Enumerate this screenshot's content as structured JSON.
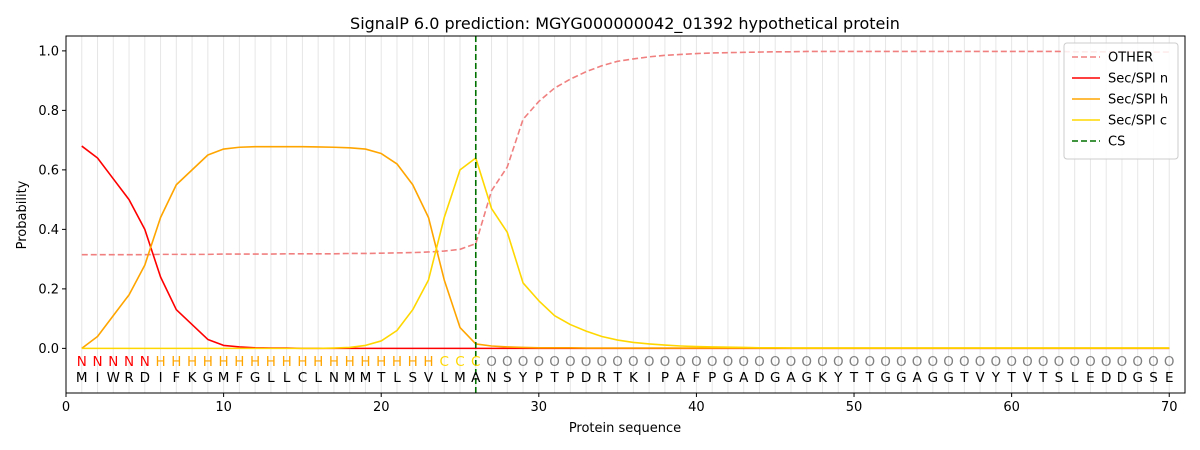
{
  "chart_data": {
    "type": "line",
    "title": "SignalP 6.0 prediction: MGYG000000042_01392 hypothetical protein",
    "xlabel": "Protein sequence",
    "ylabel": "Probability",
    "xlim": [
      0,
      71
    ],
    "ylim": [
      -0.15,
      1.05
    ],
    "xticks": [
      0,
      10,
      20,
      30,
      40,
      50,
      60,
      70
    ],
    "yticks": [
      0.0,
      0.2,
      0.4,
      0.6,
      0.8,
      1.0
    ],
    "ytick_labels": [
      "0.0",
      "0.2",
      "0.4",
      "0.6",
      "0.8",
      "1.0"
    ],
    "grid": "vertical lines at each residue",
    "legend_position": "top-right",
    "cleavage_site": 26,
    "sequence": [
      "M",
      "I",
      "W",
      "R",
      "D",
      "I",
      "F",
      "K",
      "G",
      "M",
      "F",
      "G",
      "L",
      "L",
      "C",
      "L",
      "N",
      "M",
      "M",
      "T",
      "L",
      "S",
      "V",
      "L",
      "M",
      "A",
      "N",
      "S",
      "Y",
      "P",
      "T",
      "P",
      "D",
      "R",
      "T",
      "K",
      "I",
      "P",
      "A",
      "F",
      "P",
      "G",
      "A",
      "D",
      "G",
      "A",
      "G",
      "K",
      "Y",
      "T",
      "T",
      "G",
      "G",
      "A",
      "G",
      "G",
      "T",
      "V",
      "Y",
      "T",
      "V",
      "T",
      "S",
      "L",
      "E",
      "D",
      "D",
      "G",
      "S",
      "E"
    ],
    "labels": [
      "N",
      "N",
      "N",
      "N",
      "N",
      "H",
      "H",
      "H",
      "H",
      "H",
      "H",
      "H",
      "H",
      "H",
      "H",
      "H",
      "H",
      "H",
      "H",
      "H",
      "H",
      "H",
      "H",
      "C",
      "C",
      "C",
      "O",
      "O",
      "O",
      "O",
      "O",
      "O",
      "O",
      "O",
      "O",
      "O",
      "O",
      "O",
      "O",
      "O",
      "O",
      "O",
      "O",
      "O",
      "O",
      "O",
      "O",
      "O",
      "O",
      "O",
      "O",
      "O",
      "O",
      "O",
      "O",
      "O",
      "O",
      "O",
      "O",
      "O",
      "O",
      "O",
      "O",
      "O",
      "O",
      "O",
      "O",
      "O",
      "O",
      "O"
    ],
    "label_colors": {
      "N": "#ff0000",
      "H": "#ffa500",
      "C": "#ffd700",
      "O": "#808080"
    },
    "series": [
      {
        "name": "OTHER",
        "color": "#f08080",
        "style": "dashed",
        "values": [
          0.315,
          0.315,
          0.315,
          0.315,
          0.315,
          0.316,
          0.316,
          0.316,
          0.316,
          0.317,
          0.317,
          0.317,
          0.317,
          0.318,
          0.318,
          0.318,
          0.318,
          0.319,
          0.319,
          0.32,
          0.321,
          0.322,
          0.324,
          0.327,
          0.333,
          0.352,
          0.53,
          0.61,
          0.77,
          0.83,
          0.875,
          0.905,
          0.93,
          0.95,
          0.965,
          0.973,
          0.98,
          0.985,
          0.988,
          0.991,
          0.993,
          0.994,
          0.995,
          0.996,
          0.997,
          0.997,
          0.998,
          0.998,
          0.998,
          0.998,
          0.998,
          0.998,
          0.998,
          0.998,
          0.998,
          0.998,
          0.998,
          0.998,
          0.998,
          0.998,
          0.998,
          0.998,
          0.998,
          0.997,
          0.997,
          0.997,
          0.997,
          0.997,
          0.996,
          0.996
        ]
      },
      {
        "name": "Sec/SPI n",
        "color": "#ff0000",
        "style": "solid",
        "values": [
          0.68,
          0.64,
          0.57,
          0.5,
          0.4,
          0.24,
          0.13,
          0.08,
          0.03,
          0.01,
          0.005,
          0.002,
          0.001,
          0.001,
          0,
          0,
          0,
          0,
          0,
          0,
          0,
          0,
          0,
          0,
          0,
          0,
          0,
          0,
          0,
          0,
          0,
          0,
          0,
          0,
          0,
          0,
          0,
          0,
          0,
          0,
          0,
          0,
          0,
          0,
          0,
          0,
          0,
          0,
          0,
          0,
          0,
          0,
          0,
          0,
          0,
          0,
          0,
          0,
          0,
          0,
          0,
          0,
          0,
          0,
          0,
          0,
          0,
          0,
          0,
          0
        ]
      },
      {
        "name": "Sec/SPI h",
        "color": "#ffa500",
        "style": "solid",
        "values": [
          0.0,
          0.04,
          0.11,
          0.18,
          0.28,
          0.44,
          0.55,
          0.6,
          0.65,
          0.67,
          0.676,
          0.678,
          0.678,
          0.678,
          0.678,
          0.677,
          0.676,
          0.674,
          0.67,
          0.655,
          0.62,
          0.55,
          0.44,
          0.23,
          0.07,
          0.015,
          0.008,
          0.005,
          0.003,
          0.002,
          0.002,
          0.002,
          0.001,
          0.001,
          0.001,
          0.001,
          0.001,
          0.001,
          0.001,
          0.001,
          0.001,
          0.001,
          0.001,
          0.001,
          0.001,
          0.001,
          0.001,
          0.001,
          0.001,
          0.001,
          0.001,
          0.001,
          0.001,
          0.001,
          0.001,
          0.001,
          0.001,
          0.001,
          0.001,
          0.001,
          0.001,
          0.001,
          0.001,
          0.001,
          0.001,
          0.001,
          0.001,
          0.001,
          0.001,
          0.001
        ]
      },
      {
        "name": "Sec/SPI c",
        "color": "#ffd700",
        "style": "solid",
        "values": [
          0,
          0,
          0,
          0,
          0,
          0,
          0,
          0,
          0,
          0,
          0,
          0,
          0,
          0,
          0,
          0,
          0.001,
          0.003,
          0.01,
          0.025,
          0.06,
          0.13,
          0.23,
          0.44,
          0.6,
          0.64,
          0.47,
          0.39,
          0.22,
          0.16,
          0.11,
          0.08,
          0.058,
          0.04,
          0.028,
          0.02,
          0.015,
          0.011,
          0.008,
          0.006,
          0.005,
          0.004,
          0.003,
          0.002,
          0.002,
          0.001,
          0.001,
          0.001,
          0.001,
          0.001,
          0.001,
          0.001,
          0.001,
          0.001,
          0.001,
          0.001,
          0.001,
          0.001,
          0.001,
          0.001,
          0.001,
          0.001,
          0.001,
          0.001,
          0.001,
          0.001,
          0.001,
          0.001,
          0.001,
          0.001
        ]
      }
    ],
    "cs_legend": {
      "name": "CS",
      "color": "#007000",
      "style": "dashed"
    }
  }
}
